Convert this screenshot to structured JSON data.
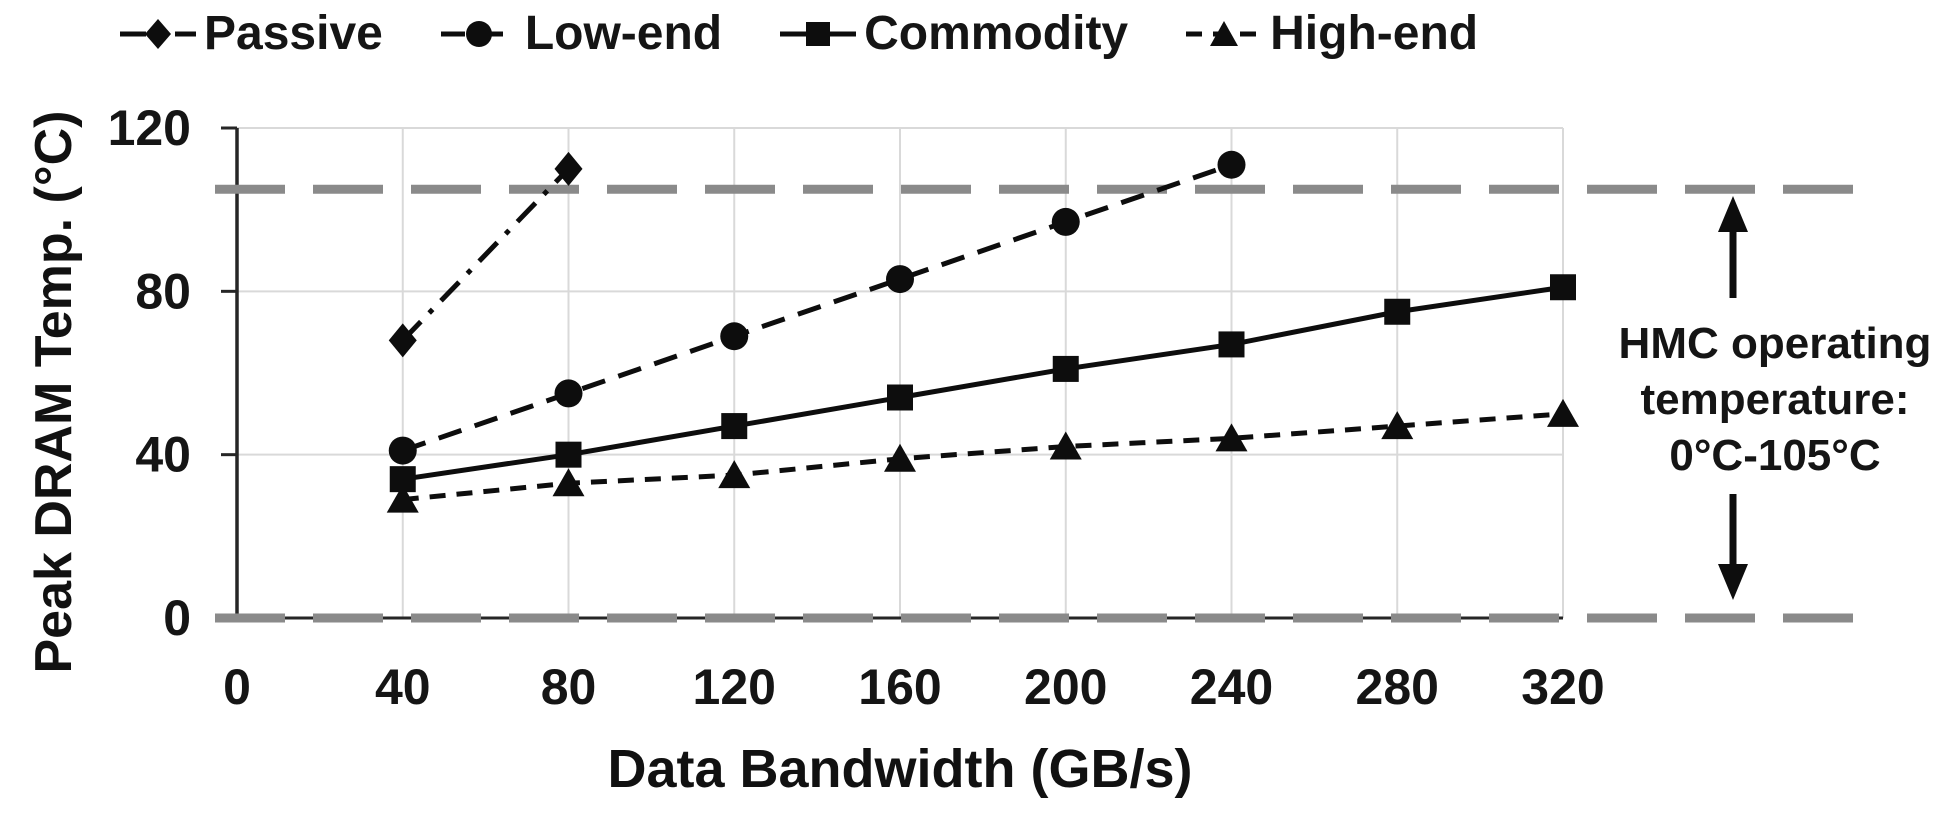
{
  "chart_data": {
    "type": "line",
    "title": "",
    "xlabel": "Data Bandwidth (GB/s)",
    "ylabel": "Peak DRAM Temp. (°C)",
    "xticks": [
      0,
      40,
      80,
      120,
      160,
      200,
      240,
      280,
      320
    ],
    "yticks": [
      0,
      40,
      80,
      120
    ],
    "xlim": [
      0,
      320
    ],
    "ylim": [
      0,
      120
    ],
    "grid": true,
    "legend_position": "top",
    "series": [
      {
        "name": "Passive",
        "marker": "diamond",
        "line_style": "dashdot",
        "x": [
          40,
          80
        ],
        "values": [
          68,
          110
        ]
      },
      {
        "name": "Low-end",
        "marker": "circle",
        "line_style": "dashed",
        "x": [
          40,
          80,
          120,
          160,
          200,
          240
        ],
        "values": [
          41,
          55,
          69,
          83,
          97,
          111
        ]
      },
      {
        "name": "Commodity",
        "marker": "square",
        "line_style": "solid",
        "x": [
          40,
          80,
          120,
          160,
          200,
          240,
          280,
          320
        ],
        "values": [
          34,
          40,
          47,
          54,
          61,
          67,
          75,
          81
        ]
      },
      {
        "name": "High-end",
        "marker": "triangle",
        "line_style": "short-dash",
        "x": [
          40,
          80,
          120,
          160,
          200,
          240,
          280,
          320
        ],
        "values": [
          29,
          33,
          35,
          39,
          42,
          44,
          47,
          50
        ]
      }
    ],
    "reference_lines": [
      {
        "value": 0,
        "style": "dashed",
        "color": "#8a8a8a"
      },
      {
        "value": 105,
        "style": "dashed",
        "color": "#8a8a8a"
      }
    ],
    "annotation": {
      "lines": [
        "HMC operating",
        "temperature:",
        "0°C-105°C"
      ]
    },
    "colors": {
      "series": "#0d0d0d",
      "gridline": "#d9d9d9",
      "axis": "#262626",
      "reference": "#8a8a8a",
      "text": "#151515"
    }
  }
}
